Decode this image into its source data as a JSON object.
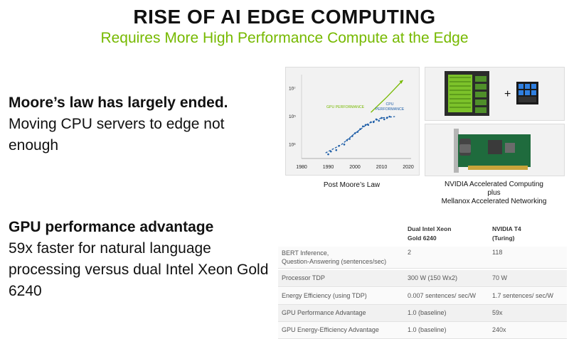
{
  "header": {
    "title": "RISE OF AI EDGE COMPUTING",
    "subtitle": "Requires More High Performance Compute at the Edge"
  },
  "left": {
    "block1": {
      "heading": "Moore’s law has largely ended.",
      "body": "Moving CPU servers to edge not enough"
    },
    "block2": {
      "heading": "GPU performance advantage",
      "body": "59x faster for natural language processing versus dual Intel Xeon Gold 6240"
    }
  },
  "chart_data": {
    "type": "line",
    "title": "",
    "xlabel": "",
    "ylabel": "",
    "x_ticks": [
      "1980",
      "1990",
      "2000",
      "2010",
      "2020"
    ],
    "y_ticks": [
      "10³",
      "10⁵",
      "10⁷"
    ],
    "xlim": [
      1980,
      2020
    ],
    "ylim": [
      2,
      8
    ],
    "y_scale": "log10",
    "series": [
      {
        "name": "GPU PERFORMANCE",
        "color": "#76b900",
        "x": [
          2006,
          2012,
          2018
        ],
        "y": [
          5.3,
          6.4,
          7.6
        ]
      },
      {
        "name": "CPU PERFORMANCE",
        "color": "#1f5fa8",
        "x": [
          1989,
          1995,
          2000,
          2005,
          2010,
          2015
        ],
        "y": [
          2.4,
          3.0,
          3.8,
          4.5,
          4.9,
          5.0
        ]
      }
    ],
    "scatter": {
      "x": [
        1990,
        1991,
        1993,
        1994,
        1996,
        1997,
        1998,
        1999,
        2000,
        2001,
        2002,
        2003,
        2004,
        2005,
        2006,
        2007,
        2008,
        2009,
        2010,
        2011,
        2012,
        2013
      ],
      "y": [
        2.3,
        2.5,
        2.6,
        2.9,
        3.0,
        3.3,
        3.4,
        3.6,
        3.8,
        3.9,
        4.1,
        4.3,
        4.4,
        4.4,
        4.6,
        4.6,
        4.8,
        4.7,
        4.9,
        4.8,
        4.9,
        5.0
      ]
    },
    "caption": "Post Moore’s Law"
  },
  "images": {
    "plus": "+",
    "caption_line1": "NVIDIA Accelerated Computing",
    "caption_line2": "plus",
    "caption_line3": "Mellanox Accelerated Networking"
  },
  "table": {
    "headers": [
      "",
      "Dual Intel Xeon\nGold 6240",
      "NVIDIA T4\n(Turing)"
    ],
    "rows": [
      [
        "BERT Inference,\nQuestion-Answering (sentences/sec)",
        "2",
        "118"
      ],
      [
        "Processor TDP",
        "300 W (150 Wx2)",
        "70 W"
      ],
      [
        "Energy Efficiency (using TDP)",
        "0.007 sentences/ sec/W",
        "1.7 sentences/ sec/W"
      ],
      [
        "GPU Performance Advantage",
        "1.0 (baseline)",
        "59x"
      ],
      [
        "GPU Energy-Efficiency Advantage",
        "1.0 (baseline)",
        "240x"
      ]
    ]
  },
  "colors": {
    "accent": "#76b900",
    "cpu": "#1f5fa8",
    "text": "#111111"
  }
}
